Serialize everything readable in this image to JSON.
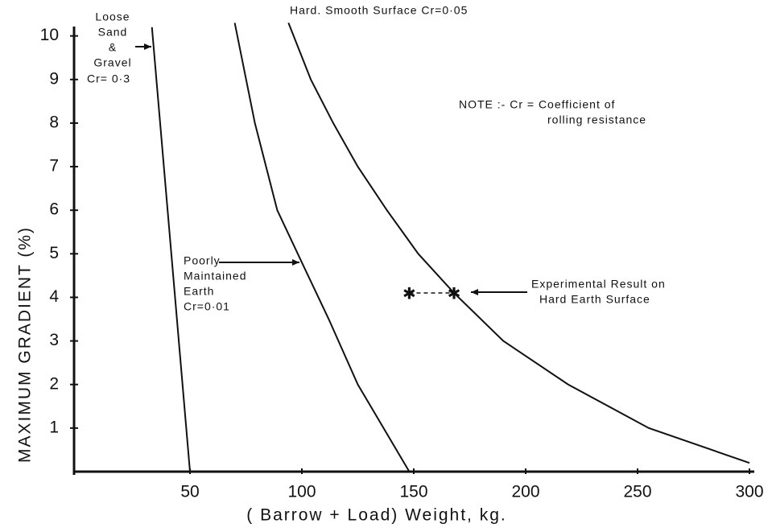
{
  "chart_data": {
    "type": "line",
    "x_label": "( Barrow + Load) Weight,  kg.",
    "y_label": "MAXIMUM  GRADIENT (%)",
    "xlim": [
      0,
      300
    ],
    "ylim": [
      0,
      10.4
    ],
    "xticks": [
      50,
      100,
      150,
      200,
      250,
      300
    ],
    "yticks": [
      1,
      2,
      3,
      4,
      5,
      6,
      7,
      8,
      9,
      10
    ],
    "series": [
      {
        "color": "#111111",
        "x": [
          33,
          50
        ],
        "values": [
          10.2,
          0
        ]
      },
      {
        "color": "#111111",
        "x": [
          70,
          79,
          89,
          100,
          112,
          125,
          148
        ],
        "values": [
          10.3,
          8,
          6,
          4.8,
          3.5,
          2,
          0
        ]
      },
      {
        "color": "#111111",
        "x": [
          94,
          104,
          114,
          125,
          138,
          152,
          168,
          190,
          219,
          255,
          300
        ],
        "values": [
          10.3,
          9,
          8,
          7,
          6,
          5,
          4.1,
          3,
          2,
          1,
          0.2
        ]
      }
    ],
    "experimental": {
      "x": [
        148,
        168
      ],
      "values": [
        4.1,
        4.1
      ]
    },
    "annotations": [
      {
        "lines": [
          "Loose",
          "Sand",
          "&",
          "Gravel"
        ]
      },
      {
        "lines": [
          "Cr= 0·3"
        ]
      },
      {
        "lines": [
          "Hard. Smooth Surface   Cr=0·05"
        ]
      },
      {
        "lines": [
          "Poorly",
          "Maintained",
          "Earth",
          "Cr=0·01"
        ]
      },
      {
        "lines": [
          "NOTE :-  Cr = Coefficient  of",
          "rolling resistance"
        ]
      },
      {
        "lines": [
          "Experimental Result on",
          "Hard Earth Surface"
        ]
      }
    ]
  }
}
